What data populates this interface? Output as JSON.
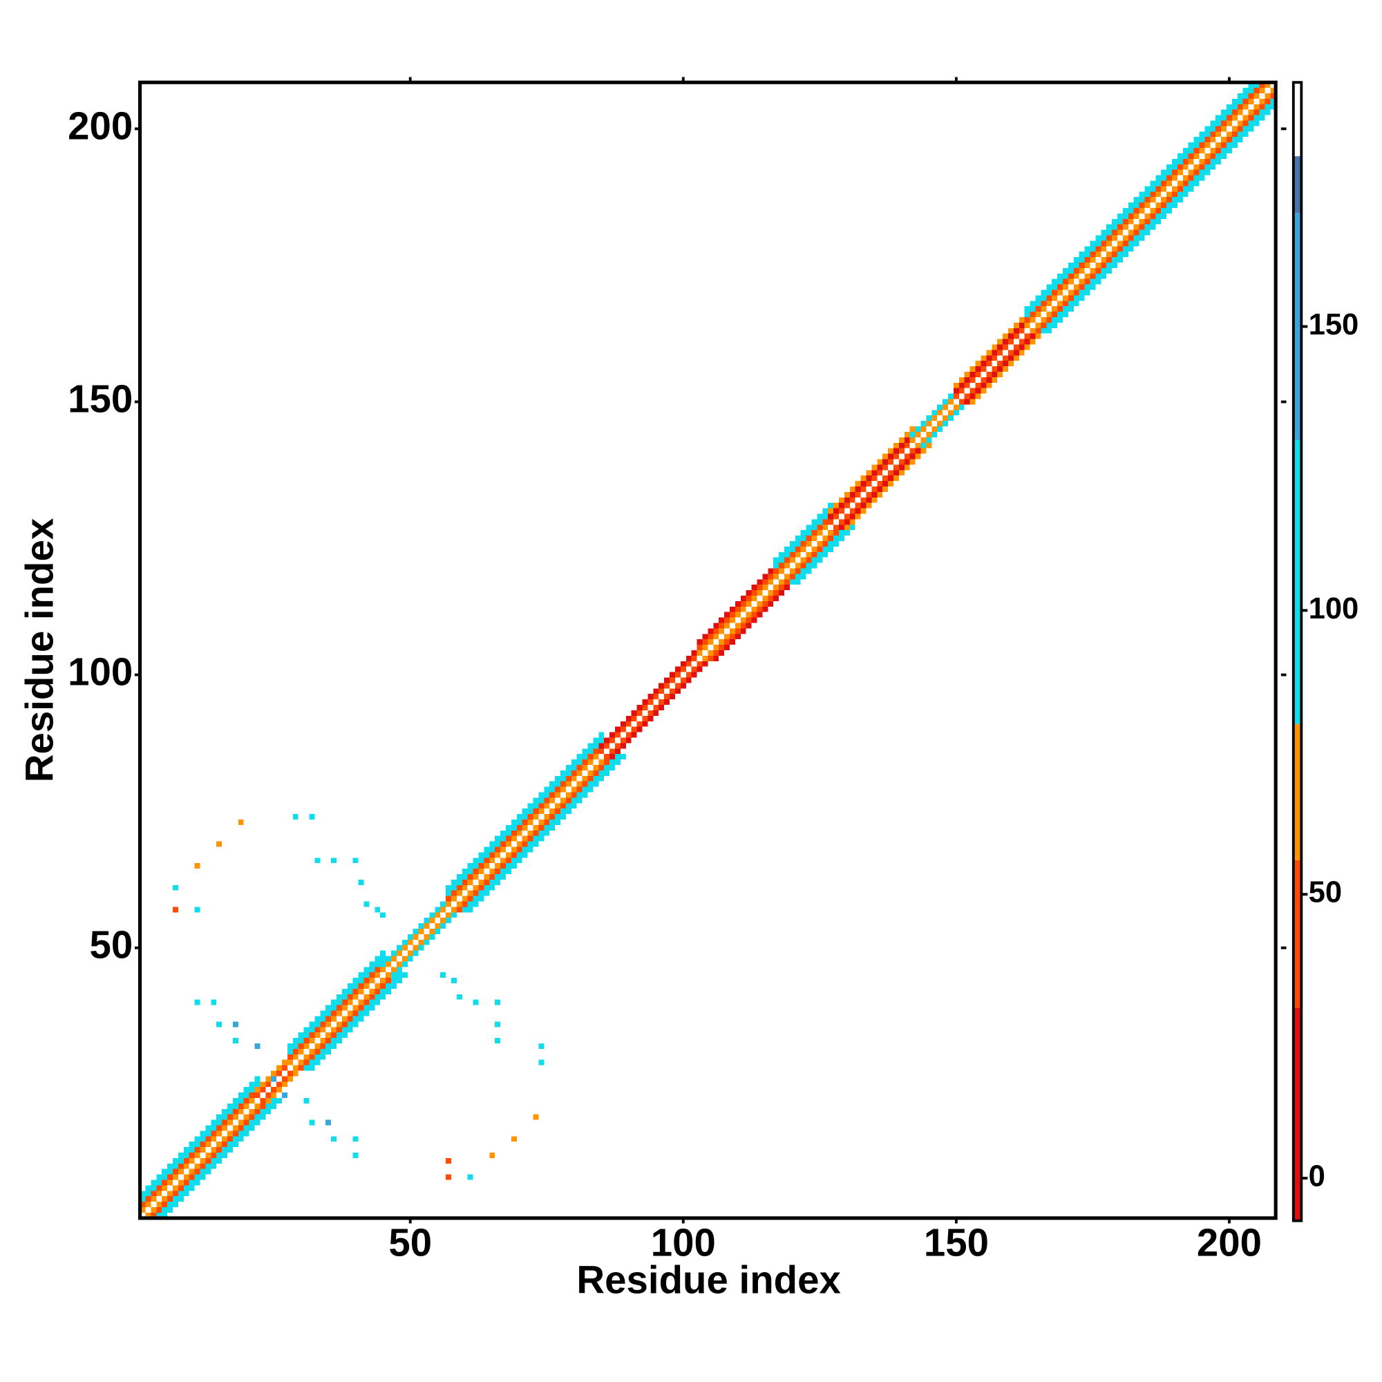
{
  "chart_data": {
    "type": "contact-map",
    "x_label": "Residue index",
    "y_label": "Residue index",
    "xlim": [
      0.5,
      208.5
    ],
    "ylim": [
      0.5,
      208.5
    ],
    "xticks": [
      50,
      100,
      150,
      200
    ],
    "yticks": [
      50,
      100,
      150,
      200
    ],
    "colorbar": {
      "lim": [
        -7.5,
        193
      ],
      "ticks": [
        0,
        50,
        100,
        150
      ],
      "stops": [
        {
          "from": -7.5,
          "to": 30,
          "color": "#e01010"
        },
        {
          "from": 30,
          "to": 56,
          "color": "#ff4a00"
        },
        {
          "from": 56,
          "to": 80,
          "color": "#ff9400"
        },
        {
          "from": 80,
          "to": 130,
          "color": "#10dcec"
        },
        {
          "from": 130,
          "to": 170,
          "color": "#3aa6d8"
        },
        {
          "from": 170,
          "to": 180,
          "color": "#4a74ac"
        },
        {
          "from": 180,
          "to": 193,
          "color": "#ffffff"
        }
      ]
    },
    "strips": {
      "from": [
        1,
        1,
        1,
        1,
        1,
        22,
        22,
        28,
        28,
        28,
        28,
        45,
        45,
        57,
        57,
        57,
        57,
        85,
        85,
        103,
        103,
        103,
        117,
        117,
        117,
        117,
        127,
        127,
        127,
        142,
        142,
        150,
        150,
        150,
        163,
        163,
        163,
        163
      ],
      "to": [
        208,
        22,
        22,
        22,
        22,
        28,
        28,
        45,
        45,
        45,
        45,
        57,
        57,
        85,
        85,
        85,
        85,
        103,
        103,
        117,
        117,
        117,
        127,
        127,
        127,
        127,
        142,
        142,
        142,
        150,
        150,
        163,
        163,
        163,
        207,
        206,
        205,
        204
      ],
      "offset": [
        0,
        1,
        2,
        3,
        4,
        1,
        2,
        1,
        2,
        3,
        4,
        1,
        2,
        1,
        2,
        3,
        4,
        1,
        2,
        1,
        2,
        3,
        1,
        2,
        3,
        4,
        1,
        2,
        3,
        1,
        2,
        1,
        2,
        3,
        1,
        2,
        3,
        4
      ],
      "values": [
        190,
        65,
        45,
        100,
        100,
        45,
        65,
        65,
        45,
        100,
        100,
        65,
        100,
        65,
        45,
        100,
        100,
        45,
        15,
        65,
        45,
        15,
        65,
        45,
        100,
        100,
        45,
        15,
        65,
        65,
        100,
        45,
        15,
        65,
        65,
        45,
        100,
        100
      ]
    },
    "contacts": {
      "x": [
        19,
        15,
        11,
        7,
        7,
        11,
        29,
        32,
        33,
        36,
        40,
        41,
        42,
        44,
        45,
        11,
        14,
        15,
        18,
        18,
        22,
        56,
        58,
        59,
        62,
        66,
        66,
        66,
        74,
        74,
        31,
        32,
        35,
        36,
        40,
        40,
        73,
        69,
        65,
        57,
        57,
        61,
        25,
        27
      ],
      "y": [
        73,
        69,
        65,
        61,
        57,
        57,
        74,
        74,
        66,
        66,
        66,
        62,
        58,
        57,
        56,
        40,
        40,
        36,
        36,
        33,
        32,
        45,
        44,
        41,
        40,
        40,
        36,
        33,
        32,
        29,
        22,
        18,
        18,
        15,
        15,
        12,
        19,
        15,
        12,
        11,
        8,
        8,
        26,
        23
      ],
      "values": [
        65,
        65,
        65,
        100,
        45,
        100,
        100,
        100,
        100,
        100,
        100,
        100,
        100,
        100,
        100,
        100,
        100,
        100,
        150,
        100,
        150,
        100,
        100,
        100,
        100,
        100,
        100,
        100,
        100,
        100,
        100,
        100,
        150,
        100,
        100,
        100,
        65,
        65,
        65,
        45,
        45,
        100,
        150,
        150
      ]
    }
  }
}
